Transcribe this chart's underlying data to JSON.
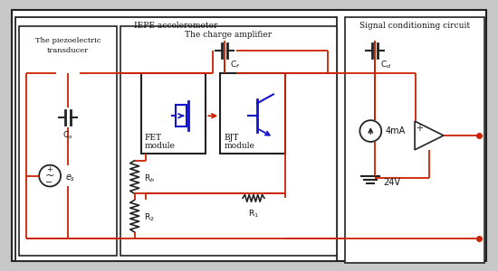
{
  "fig_bg": "#c8c8c8",
  "wire_color": "#cc2200",
  "box_color": "#222222",
  "text_color": "#111111",
  "blue_color": "#1111cc",
  "title_iepe": "IEPE accelerometer",
  "title_piezo1": "The piezoelectric",
  "title_piezo2": "transducer",
  "title_charge": "The charge amplifier",
  "title_signal": "Signal conditioning circuit",
  "label_Cs": "Cs",
  "label_Cf": "Cf",
  "label_Cd": "Cd",
  "label_Rb": "Rb",
  "label_R1": "R1",
  "label_R2": "R2",
  "label_es": "es",
  "label_4mA": "4mA",
  "label_24V": "24V"
}
